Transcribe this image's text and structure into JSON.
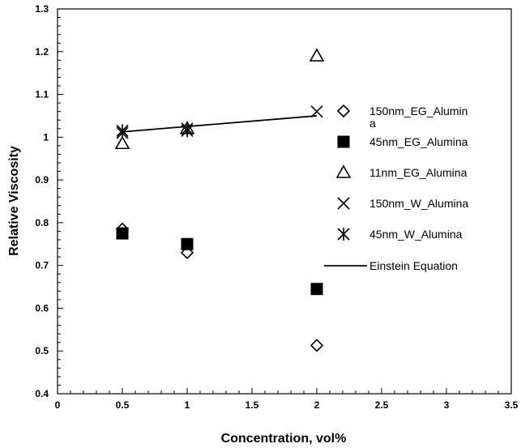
{
  "chart_data": {
    "type": "scatter",
    "title": "",
    "xlabel": "Concentration, vol%",
    "ylabel": "Relative Viscosity",
    "xlim": [
      0,
      3.5
    ],
    "ylim": [
      0.4,
      1.3
    ],
    "x_ticks": [
      "0",
      "0.5",
      "1",
      "1.5",
      "2",
      "2.5",
      "3",
      "3.5"
    ],
    "y_ticks": [
      "0.4",
      "0.5",
      "0.6",
      "0.7",
      "0.8",
      "0.9",
      "1",
      "1.1",
      "1.2",
      "1.3"
    ],
    "x_tick_values": [
      0,
      0.5,
      1,
      1.5,
      2,
      2.5,
      3,
      3.5
    ],
    "y_tick_values": [
      0.4,
      0.5,
      0.6,
      0.7,
      0.8,
      0.9,
      1.0,
      1.1,
      1.2,
      1.3
    ],
    "grid": false,
    "legend_position": "right",
    "series": [
      {
        "name": "150nm_EG_Alumin\na",
        "marker": "diamond",
        "x": [
          0.5,
          1,
          2
        ],
        "y": [
          0.785,
          0.73,
          0.513
        ]
      },
      {
        "name": "45nm_EG_Alumina",
        "marker": "square",
        "x": [
          0.5,
          1,
          2
        ],
        "y": [
          0.775,
          0.75,
          0.645
        ]
      },
      {
        "name": "11nm_EG_Alumina",
        "marker": "triangle",
        "x": [
          0.5,
          1,
          2
        ],
        "y": [
          0.985,
          1.02,
          1.19
        ]
      },
      {
        "name": "150nm_W_Alumina",
        "marker": "x",
        "x": [
          0.5,
          1,
          2
        ],
        "y": [
          1.01,
          1.02,
          1.06
        ]
      },
      {
        "name": "45nm_W_Alumina",
        "marker": "star",
        "x": [
          0.5,
          1
        ],
        "y": [
          1.015,
          1.015
        ]
      },
      {
        "name": "Einstein Equation",
        "marker": "line",
        "x": [
          0.5,
          1,
          2
        ],
        "y": [
          1.0125,
          1.025,
          1.05
        ]
      }
    ],
    "colors": {
      "marker": "#000000",
      "background": "#ffffff"
    }
  }
}
